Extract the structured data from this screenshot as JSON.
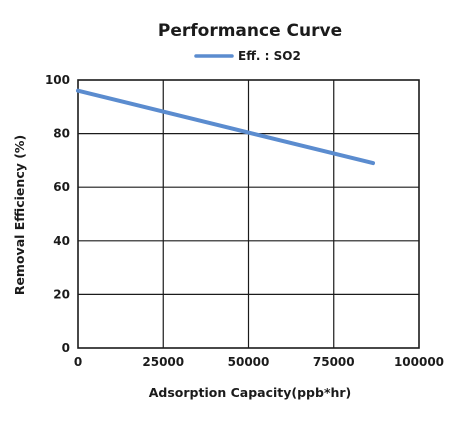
{
  "chart_data": {
    "type": "line",
    "title": "Performance Curve",
    "xlabel": "Adsorption Capacity(ppb*hr)",
    "ylabel": "Removal Efficiency (%)",
    "xlim": [
      0,
      100000
    ],
    "ylim": [
      0,
      100
    ],
    "x_ticks": [
      "0",
      "25000",
      "50000",
      "75000",
      "100000"
    ],
    "y_ticks": [
      "0",
      "20",
      "40",
      "60",
      "80",
      "100"
    ],
    "grid": true,
    "legend_position": "top-center",
    "series": [
      {
        "name": "Eff. : SO2",
        "color": "#5b8ccf",
        "x": [
          0,
          86500
        ],
        "y": [
          96,
          69
        ]
      }
    ]
  }
}
